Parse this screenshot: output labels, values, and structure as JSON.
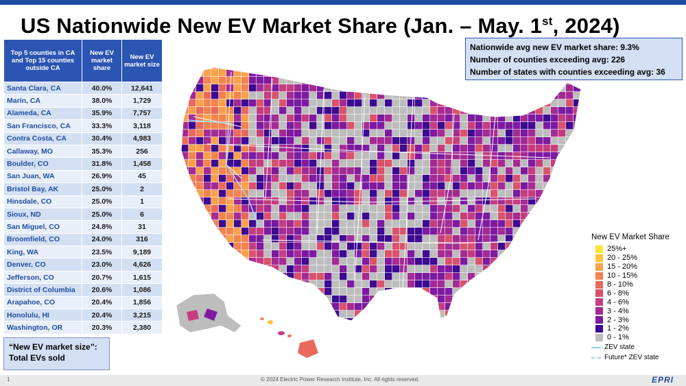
{
  "title": {
    "main": "US Nationwide New EV Market Share (Jan. – May. 1",
    "sup": "st",
    "end": ", 2024)"
  },
  "table": {
    "headers": [
      "Top 5 counties in CA and Top 15 counties outside CA",
      "New EV market share",
      "New EV market size"
    ],
    "rows": [
      {
        "county": "Santa Clara, CA",
        "share": "40.0%",
        "size": "12,641"
      },
      {
        "county": "Marin, CA",
        "share": "38.0%",
        "size": "1,729"
      },
      {
        "county": "Alameda, CA",
        "share": "35.9%",
        "size": "7,757"
      },
      {
        "county": "San Francisco, CA",
        "share": "33.3%",
        "size": "3,118"
      },
      {
        "county": "Contra Costa, CA",
        "share": "30.4%",
        "size": "4,983"
      },
      {
        "county": "Callaway, MO",
        "share": "35.3%",
        "size": "256"
      },
      {
        "county": "Boulder, CO",
        "share": "31.8%",
        "size": "1,458"
      },
      {
        "county": "San Juan, WA",
        "share": "26.9%",
        "size": "45"
      },
      {
        "county": "Bristol Bay, AK",
        "share": "25.0%",
        "size": "2"
      },
      {
        "county": "Hinsdale, CO",
        "share": "25.0%",
        "size": "1"
      },
      {
        "county": "Sioux, ND",
        "share": "25.0%",
        "size": "6"
      },
      {
        "county": "San Miguel, CO",
        "share": "24.8%",
        "size": "31"
      },
      {
        "county": "Broomfield, CO",
        "share": "24.0%",
        "size": "316"
      },
      {
        "county": "King, WA",
        "share": "23.5%",
        "size": "9,189"
      },
      {
        "county": "Denver, CO",
        "share": "23.0%",
        "size": "4,626"
      },
      {
        "county": "Jefferson, CO",
        "share": "20.7%",
        "size": "1,615"
      },
      {
        "county": "District of Columbia",
        "share": "20.6%",
        "size": "1,086"
      },
      {
        "county": "Arapahoe, CO",
        "share": "20.4%",
        "size": "1,856"
      },
      {
        "county": "Honolulu, HI",
        "share": "20.4%",
        "size": "3,215"
      },
      {
        "county": "Washington, OR",
        "share": "20.3%",
        "size": "2,380"
      }
    ]
  },
  "note": {
    "line1": "“New EV market size”:",
    "line2": "Total EVs sold"
  },
  "stats": {
    "line1": "Nationwide avg new EV market share: 9.3%",
    "line2": "Number of counties exceeding avg: 226",
    "line3": "Number of states with counties exceeding avg: 36"
  },
  "legend": {
    "title": "New EV Market Share",
    "items": [
      {
        "label": "25%+",
        "color": "#f9e734"
      },
      {
        "label": "20 - 25%",
        "color": "#fcc33a"
      },
      {
        "label": "15 - 20%",
        "color": "#f9a14a"
      },
      {
        "label": "10 - 15%",
        "color": "#f3834f"
      },
      {
        "label": "8 - 10%",
        "color": "#e96a5c"
      },
      {
        "label": "6 - 8%",
        "color": "#d9536c"
      },
      {
        "label": "4 - 6%",
        "color": "#c43e7f"
      },
      {
        "label": "3 - 4%",
        "color": "#a42b93"
      },
      {
        "label": "2 - 3%",
        "color": "#7d1aa0"
      },
      {
        "label": "1 - 2%",
        "color": "#3d0a91"
      },
      {
        "label": "0 - 1%",
        "color": "#bdbdbd"
      }
    ],
    "zev_state": "ZEV state",
    "future_zev_state": "Future* ZEV state"
  },
  "footer": {
    "page": "1",
    "copyright": "© 2024 Electric Power Research Institute, Inc. All rights reserved.",
    "logo": "EPRI"
  }
}
